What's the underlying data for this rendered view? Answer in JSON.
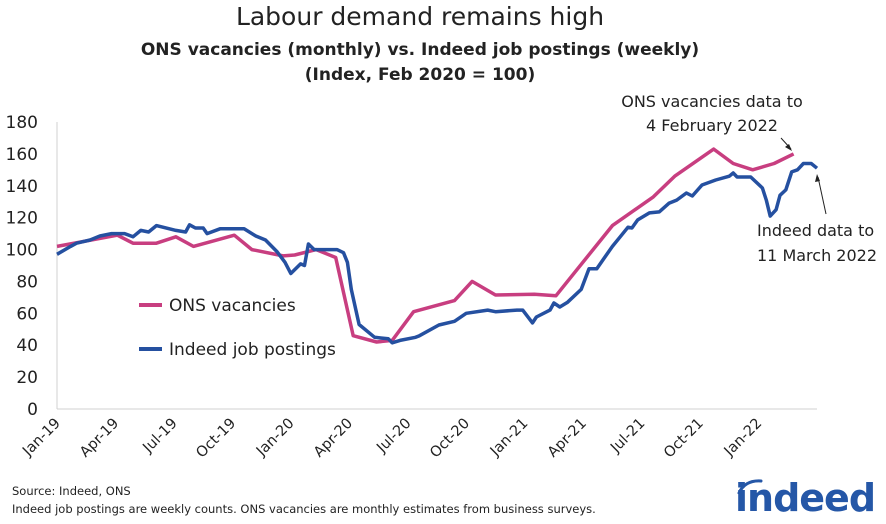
{
  "title": "Labour demand remains high",
  "subtitle_line1": "ONS vacancies (monthly) vs. Indeed job postings (weekly)",
  "subtitle_line2": "(Index, Feb 2020 = 100)",
  "footer": {
    "source": "Source: Indeed, ONS",
    "note": "Indeed job postings are weekly counts. ONS vacancies are monthly estimates from business surveys."
  },
  "logo_text": "indeed",
  "colors": {
    "ons": "#c83e80",
    "indeed": "#2550a0",
    "logo": "#2557a7"
  },
  "chart_data": {
    "type": "line",
    "title": "",
    "xlabel": "",
    "ylabel": "",
    "ylim": [
      0,
      180
    ],
    "y_ticks": [
      "0",
      "20",
      "40",
      "60",
      "80",
      "100",
      "120",
      "140",
      "160",
      "180"
    ],
    "x_ticks": [
      {
        "label": "Jan-19",
        "date": "2019-01-01"
      },
      {
        "label": "Apr-19",
        "date": "2019-04-01"
      },
      {
        "label": "Jul-19",
        "date": "2019-07-01"
      },
      {
        "label": "Oct-19",
        "date": "2019-10-01"
      },
      {
        "label": "Jan-20",
        "date": "2020-01-01"
      },
      {
        "label": "Apr-20",
        "date": "2020-04-01"
      },
      {
        "label": "Jul-20",
        "date": "2020-07-01"
      },
      {
        "label": "Oct-20",
        "date": "2020-10-01"
      },
      {
        "label": "Jan-21",
        "date": "2021-01-01"
      },
      {
        "label": "Apr-21",
        "date": "2021-04-01"
      },
      {
        "label": "Jul-21",
        "date": "2021-07-01"
      },
      {
        "label": "Oct-21",
        "date": "2021-10-01"
      },
      {
        "label": "Jan-22",
        "date": "2022-01-01"
      }
    ],
    "xlim": [
      "2019-01-01",
      "2022-04-01"
    ],
    "grid": false,
    "legend_placement": "center-left",
    "series": [
      {
        "name": "ONS vacancies",
        "color": "#c83e80",
        "points": [
          [
            "2019-01-01",
            102
          ],
          [
            "2019-04-04",
            109
          ],
          [
            "2019-04-28",
            104
          ],
          [
            "2019-06-04",
            104
          ],
          [
            "2019-07-04",
            108
          ],
          [
            "2019-08-01",
            102
          ],
          [
            "2019-10-04",
            109
          ],
          [
            "2019-11-01",
            100
          ],
          [
            "2019-12-19",
            96
          ],
          [
            "2020-01-07",
            96.6
          ],
          [
            "2020-02-10",
            100
          ],
          [
            "2020-03-10",
            95
          ],
          [
            "2020-04-07",
            46
          ],
          [
            "2020-05-13",
            42
          ],
          [
            "2020-06-07",
            43
          ],
          [
            "2020-07-10",
            61
          ],
          [
            "2020-09-13",
            68
          ],
          [
            "2020-10-10",
            80
          ],
          [
            "2020-11-16",
            71.5
          ],
          [
            "2021-01-16",
            72
          ],
          [
            "2021-02-19",
            71
          ],
          [
            "2021-05-16",
            115
          ],
          [
            "2021-07-19",
            133
          ],
          [
            "2021-08-22",
            146
          ],
          [
            "2021-10-22",
            163
          ],
          [
            "2021-11-22",
            154
          ],
          [
            "2021-12-22",
            150
          ],
          [
            "2022-01-25",
            154
          ],
          [
            "2022-02-25",
            160
          ]
        ]
      },
      {
        "name": "Indeed job postings",
        "color": "#2550a0",
        "points": [
          [
            "2019-01-01",
            97
          ],
          [
            "2019-01-22",
            102
          ],
          [
            "2019-02-01",
            104
          ],
          [
            "2019-02-22",
            106
          ],
          [
            "2019-03-07",
            108.5
          ],
          [
            "2019-03-25",
            110
          ],
          [
            "2019-04-15",
            110
          ],
          [
            "2019-04-28",
            108
          ],
          [
            "2019-05-10",
            112
          ],
          [
            "2019-05-22",
            111
          ],
          [
            "2019-06-04",
            115
          ],
          [
            "2019-07-04",
            112
          ],
          [
            "2019-07-19",
            111
          ],
          [
            "2019-07-25",
            115.5
          ],
          [
            "2019-08-04",
            113.5
          ],
          [
            "2019-08-16",
            113.5
          ],
          [
            "2019-08-22",
            110
          ],
          [
            "2019-09-12",
            113
          ],
          [
            "2019-10-04",
            113
          ],
          [
            "2019-10-19",
            113
          ],
          [
            "2019-11-07",
            108.5
          ],
          [
            "2019-11-22",
            106
          ],
          [
            "2019-12-10",
            98.5
          ],
          [
            "2019-12-22",
            92
          ],
          [
            "2020-01-01",
            85
          ],
          [
            "2020-01-16",
            91
          ],
          [
            "2020-01-22",
            90
          ],
          [
            "2020-01-28",
            103.5
          ],
          [
            "2020-02-07",
            100
          ],
          [
            "2020-02-22",
            100
          ],
          [
            "2020-03-12",
            100
          ],
          [
            "2020-03-22",
            98
          ],
          [
            "2020-03-28",
            92
          ],
          [
            "2020-04-04",
            75
          ],
          [
            "2020-04-16",
            53
          ],
          [
            "2020-05-10",
            45
          ],
          [
            "2020-06-01",
            44
          ],
          [
            "2020-06-07",
            41.5
          ],
          [
            "2020-06-19",
            43
          ],
          [
            "2020-07-13",
            45
          ],
          [
            "2020-07-19",
            46
          ],
          [
            "2020-08-19",
            52.7
          ],
          [
            "2020-09-13",
            55
          ],
          [
            "2020-10-01",
            60
          ],
          [
            "2020-11-04",
            62
          ],
          [
            "2020-11-16",
            61
          ],
          [
            "2020-12-19",
            62
          ],
          [
            "2020-12-28",
            62
          ],
          [
            "2021-01-13",
            54
          ],
          [
            "2021-01-19",
            57.7
          ],
          [
            "2021-02-10",
            62
          ],
          [
            "2021-02-16",
            66.5
          ],
          [
            "2021-02-25",
            64
          ],
          [
            "2021-03-07",
            67
          ],
          [
            "2021-03-28",
            75
          ],
          [
            "2021-04-10",
            88
          ],
          [
            "2021-04-22",
            88
          ],
          [
            "2021-05-04",
            95
          ],
          [
            "2021-05-16",
            102
          ],
          [
            "2021-05-28",
            108
          ],
          [
            "2021-06-10",
            114
          ],
          [
            "2021-06-16",
            113.5
          ],
          [
            "2021-06-25",
            118.6
          ],
          [
            "2021-07-13",
            123
          ],
          [
            "2021-07-28",
            123.6
          ],
          [
            "2021-08-13",
            129
          ],
          [
            "2021-08-25",
            131
          ],
          [
            "2021-09-10",
            135.5
          ],
          [
            "2021-09-19",
            133.6
          ],
          [
            "2021-10-04",
            140.5
          ],
          [
            "2021-10-25",
            143.6
          ],
          [
            "2021-11-16",
            146
          ],
          [
            "2021-11-22",
            148
          ],
          [
            "2021-11-28",
            145.5
          ],
          [
            "2021-12-19",
            145.5
          ],
          [
            "2022-01-07",
            138.6
          ],
          [
            "2022-01-13",
            131
          ],
          [
            "2022-01-19",
            121
          ],
          [
            "2022-01-28",
            125
          ],
          [
            "2022-02-04",
            134
          ],
          [
            "2022-02-13",
            137.4
          ],
          [
            "2022-02-22",
            148.7
          ],
          [
            "2022-03-01",
            150
          ],
          [
            "2022-03-10",
            154
          ],
          [
            "2022-03-22",
            154
          ],
          [
            "2022-04-01",
            151
          ]
        ]
      }
    ],
    "annotations": [
      {
        "line1": "ONS vacancies data to",
        "line2": "4 February 2022"
      },
      {
        "line1": "Indeed data to",
        "line2": "11 March 2022"
      }
    ]
  }
}
